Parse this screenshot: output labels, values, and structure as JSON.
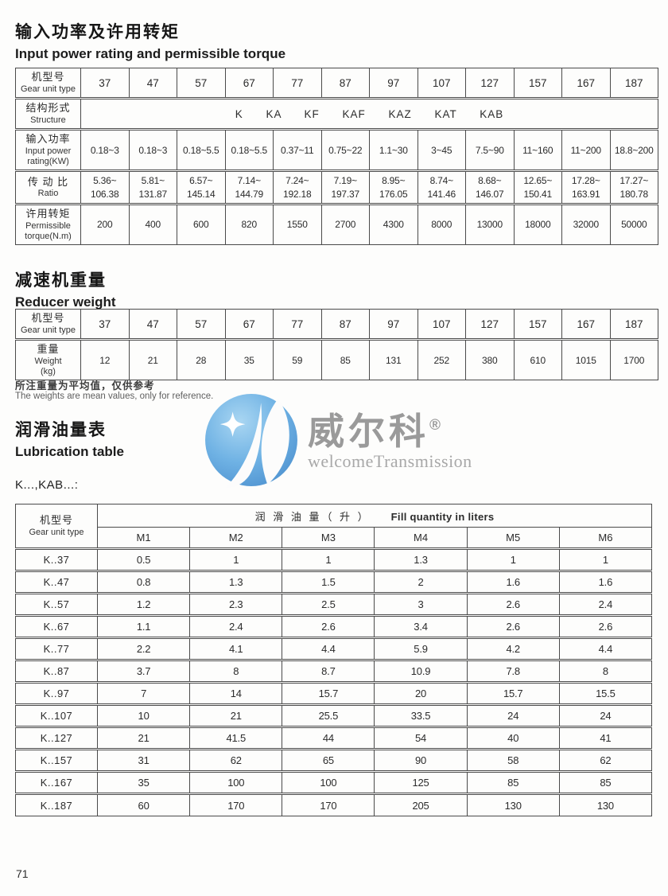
{
  "page": {
    "number": "71"
  },
  "logo": {
    "name_zh": "威尔科",
    "registered": "®",
    "name_en": "welcomeTransmission"
  },
  "sections": {
    "power_torque": {
      "title_zh": "输入功率及许用转矩",
      "title_en": "Input power rating and permissible torque",
      "row_headers": {
        "model": [
          "机型号",
          "Gear unit type"
        ],
        "structure": [
          "结构形式",
          "Structure"
        ],
        "power": [
          "输入功率",
          "Input power",
          "rating(KW)"
        ],
        "ratio": [
          "传 动 比",
          "Ratio"
        ],
        "torque": [
          "许用转矩",
          "Permissible",
          "torque(N.m)"
        ]
      },
      "gear_types": [
        "37",
        "47",
        "57",
        "67",
        "77",
        "87",
        "97",
        "107",
        "127",
        "157",
        "167",
        "187"
      ],
      "structure_value": "K KA KF KAF KAZ KAT KAB",
      "input_power": [
        "0.18~3",
        "0.18~3",
        "0.18~5.5",
        "0.18~5.5",
        "0.37~11",
        "0.75~22",
        "1.1~30",
        "3~45",
        "7.5~90",
        "11~160",
        "11~200",
        "18.8~200"
      ],
      "ratio": [
        "5.36~\n106.38",
        "5.81~\n131.87",
        "6.57~\n145.14",
        "7.14~\n144.79",
        "7.24~\n192.18",
        "7.19~\n197.37",
        "8.95~\n176.05",
        "8.74~\n141.46",
        "8.68~\n146.07",
        "12.65~\n150.41",
        "17.28~\n163.91",
        "17.27~\n180.78"
      ],
      "torque": [
        "200",
        "400",
        "600",
        "820",
        "1550",
        "2700",
        "4300",
        "8000",
        "13000",
        "18000",
        "32000",
        "50000"
      ]
    },
    "weight": {
      "title_zh": "减速机重量",
      "title_en": "Reducer weight",
      "row_headers": {
        "model": [
          "机型号",
          "Gear unit type"
        ],
        "weight": [
          "重量",
          "Weight",
          "(kg)"
        ]
      },
      "gear_types": [
        "37",
        "47",
        "57",
        "67",
        "77",
        "87",
        "97",
        "107",
        "127",
        "157",
        "167",
        "187"
      ],
      "weights": [
        "12",
        "21",
        "28",
        "35",
        "59",
        "85",
        "131",
        "252",
        "380",
        "610",
        "1015",
        "1700"
      ],
      "note_zh": "所注重量为平均值，仅供参考",
      "note_en": "The weights are mean values, only for reference."
    },
    "lubrication": {
      "title_zh": "润滑油量表",
      "title_en": "Lubrication table",
      "series_label": "K...,KAB...:",
      "header": {
        "model": [
          "机型号",
          "Gear unit type"
        ],
        "fill_zh": "润 滑 油 量（ 升 ）",
        "fill_en": "Fill quantity in liters",
        "columns": [
          "M1",
          "M2",
          "M3",
          "M4",
          "M5",
          "M6"
        ]
      },
      "rows": [
        {
          "model": "K..37",
          "values": [
            "0.5",
            "1",
            "1",
            "1.3",
            "1",
            "1"
          ]
        },
        {
          "model": "K..47",
          "values": [
            "0.8",
            "1.3",
            "1.5",
            "2",
            "1.6",
            "1.6"
          ]
        },
        {
          "model": "K..57",
          "values": [
            "1.2",
            "2.3",
            "2.5",
            "3",
            "2.6",
            "2.4"
          ]
        },
        {
          "model": "K..67",
          "values": [
            "1.1",
            "2.4",
            "2.6",
            "3.4",
            "2.6",
            "2.6"
          ]
        },
        {
          "model": "K..77",
          "values": [
            "2.2",
            "4.1",
            "4.4",
            "5.9",
            "4.2",
            "4.4"
          ]
        },
        {
          "model": "K..87",
          "values": [
            "3.7",
            "8",
            "8.7",
            "10.9",
            "7.8",
            "8"
          ]
        },
        {
          "model": "K..97",
          "values": [
            "7",
            "14",
            "15.7",
            "20",
            "15.7",
            "15.5"
          ]
        },
        {
          "model": "K..107",
          "values": [
            "10",
            "21",
            "25.5",
            "33.5",
            "24",
            "24"
          ]
        },
        {
          "model": "K..127",
          "values": [
            "21",
            "41.5",
            "44",
            "54",
            "40",
            "41"
          ]
        },
        {
          "model": "K..157",
          "values": [
            "31",
            "62",
            "65",
            "90",
            "58",
            "62"
          ]
        },
        {
          "model": "K..167",
          "values": [
            "35",
            "100",
            "100",
            "125",
            "85",
            "85"
          ]
        },
        {
          "model": "K..187",
          "values": [
            "60",
            "170",
            "170",
            "205",
            "130",
            "130"
          ]
        }
      ]
    }
  }
}
